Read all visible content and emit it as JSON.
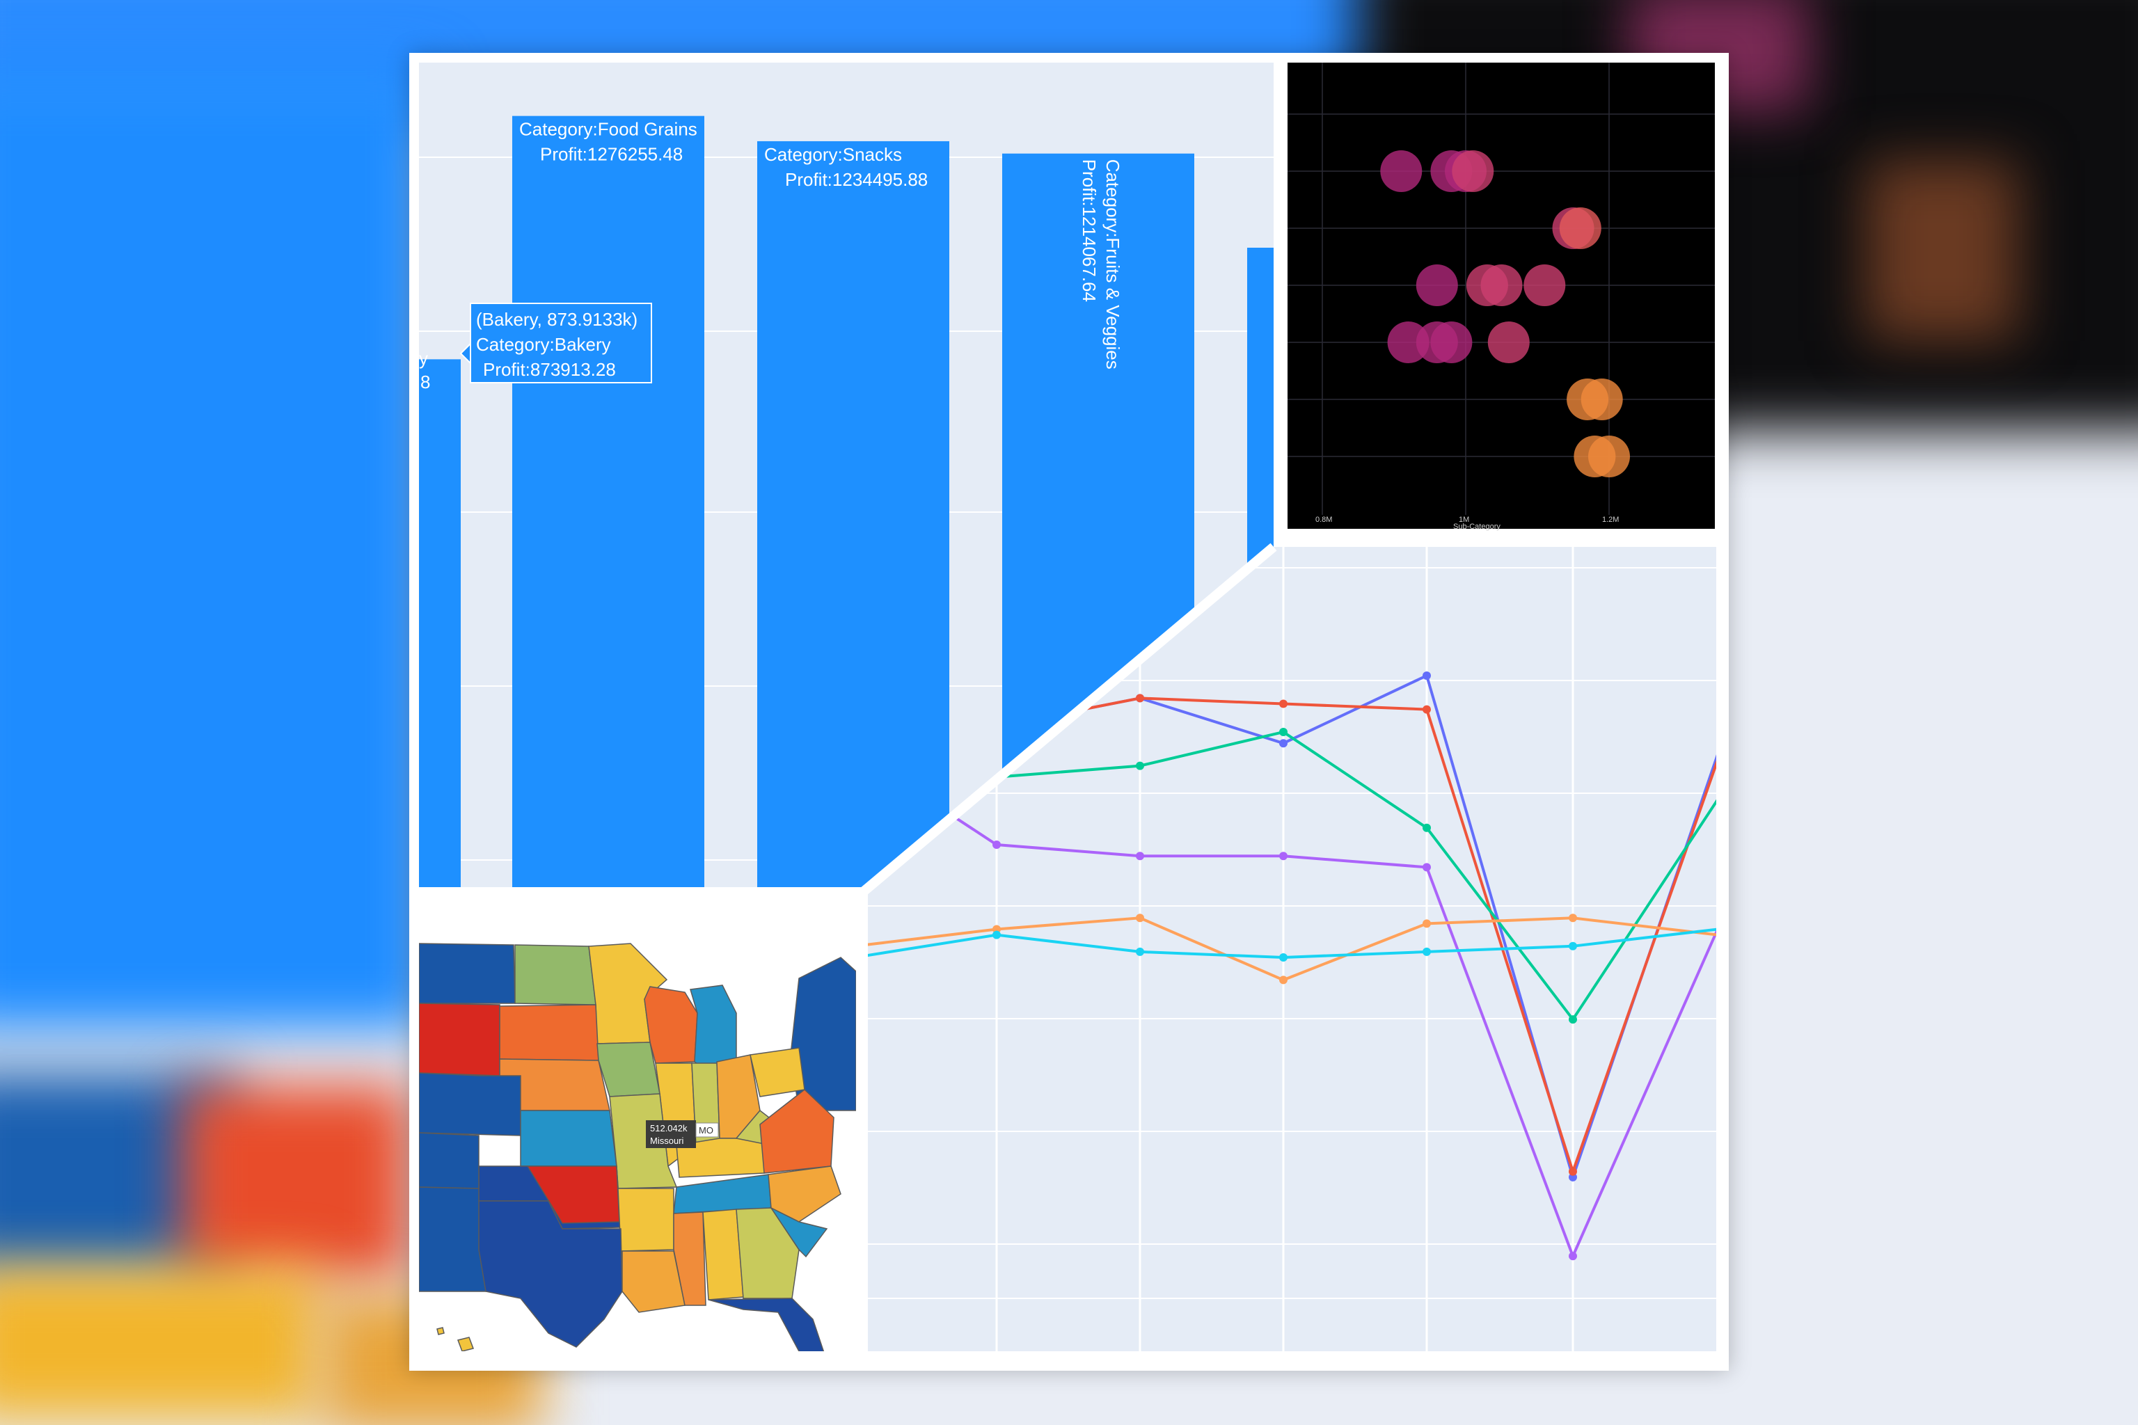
{
  "colors": {
    "bar": "#1e90ff",
    "plot_bg": "#e5ecf6",
    "grid": "#ffffff",
    "scatter_bg": "#000000"
  },
  "chart_data": [
    {
      "type": "bar",
      "categories": [
        "Bakery",
        "Food Grains",
        "Snacks",
        "Fruits & Veggies",
        ""
      ],
      "values": [
        873913.28,
        1276255.48,
        1234495.88,
        1214067.64,
        null
      ],
      "bar_labels": [
        [
          "Category:Bakery",
          "Profit:873913.28"
        ],
        [
          "Category:Food Grains",
          "Profit:1276255.48"
        ],
        [
          "Category:Snacks",
          "Profit:1234495.88"
        ],
        [
          "Category:Fruits & Veggies",
          "Profit:1214067.64"
        ]
      ],
      "hover_tooltip": [
        "(Bakery, 873.9133k)",
        "Category:Bakery",
        "Profit:873913.28"
      ],
      "grid": true
    },
    {
      "type": "scatter",
      "xlabel": "Sub-Category",
      "x_ticks": [
        "0.8M",
        "1M",
        "1.2M"
      ],
      "xlim": [
        0.8,
        1.2
      ],
      "grid": true,
      "series": [
        {
          "color": "#b0287a",
          "points": [
            [
              0.91,
              1
            ],
            [
              0.98,
              1
            ],
            [
              1.0,
              1
            ],
            [
              0.96,
              3
            ],
            [
              0.92,
              4
            ],
            [
              0.96,
              4
            ],
            [
              0.98,
              4
            ]
          ]
        },
        {
          "color": "#cc3f6f",
          "points": [
            [
              1.01,
              1
            ],
            [
              1.15,
              2
            ],
            [
              1.03,
              3
            ],
            [
              1.05,
              3
            ],
            [
              1.11,
              3
            ],
            [
              1.06,
              4
            ]
          ]
        },
        {
          "color": "#e35a5a",
          "points": [
            [
              1.16,
              2
            ]
          ]
        },
        {
          "color": "#f08a3c",
          "points": [
            [
              1.17,
              5
            ],
            [
              1.18,
              6
            ],
            [
              1.19,
              5
            ],
            [
              1.2,
              6
            ]
          ]
        }
      ]
    },
    {
      "type": "choropleth",
      "hover_tooltip": [
        "512.042k",
        "MO",
        "Missouri"
      ]
    },
    {
      "type": "line",
      "grid": true,
      "series": [
        {
          "color": "#636efa",
          "values": [
            null,
            1.11,
            1.16,
            1.08,
            1.2,
            0.31,
            1.06
          ]
        },
        {
          "color": "#ef553b",
          "values": [
            null,
            1.11,
            1.16,
            1.15,
            1.14,
            0.32,
            1.05
          ]
        },
        {
          "color": "#00cc96",
          "values": [
            null,
            1.02,
            1.04,
            1.1,
            0.93,
            0.59,
            0.98
          ]
        },
        {
          "color": "#ab63fa",
          "values": [
            null,
            0.9,
            0.88,
            0.88,
            0.86,
            0.17,
            0.75
          ]
        },
        {
          "color": "#ffa15a",
          "values": [
            null,
            0.75,
            0.77,
            0.66,
            0.76,
            0.77,
            0.74
          ]
        },
        {
          "color": "#19d3f3",
          "values": [
            null,
            0.74,
            0.71,
            0.7,
            0.71,
            0.72,
            0.75
          ]
        }
      ]
    }
  ]
}
